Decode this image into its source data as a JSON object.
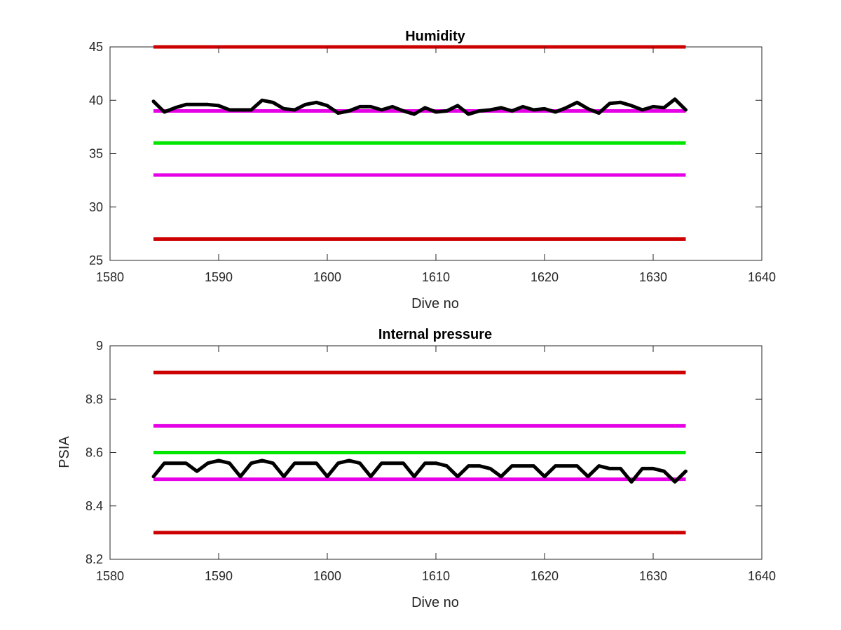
{
  "chart_data": [
    {
      "type": "line",
      "title": "Humidity",
      "xlabel": "Dive no",
      "ylabel": "",
      "xlim": [
        1580,
        1640
      ],
      "ylim": [
        25,
        45
      ],
      "xticks": [
        1580,
        1590,
        1600,
        1610,
        1620,
        1630,
        1640
      ],
      "yticks": [
        25,
        30,
        35,
        40,
        45
      ],
      "grid": false,
      "reference_lines": [
        {
          "value": 45,
          "color": "#cc0000",
          "x_range": [
            1584,
            1633
          ]
        },
        {
          "value": 39,
          "color": "#e600e6",
          "x_range": [
            1584,
            1633
          ]
        },
        {
          "value": 36,
          "color": "#00e600",
          "x_range": [
            1584,
            1633
          ]
        },
        {
          "value": 33,
          "color": "#e600e6",
          "x_range": [
            1584,
            1633
          ]
        },
        {
          "value": 27,
          "color": "#cc0000",
          "x_range": [
            1584,
            1633
          ]
        }
      ],
      "series": [
        {
          "color": "#000000",
          "x": [
            1584,
            1585,
            1586,
            1587,
            1588,
            1589,
            1590,
            1591,
            1592,
            1593,
            1594,
            1595,
            1596,
            1597,
            1598,
            1599,
            1600,
            1601,
            1602,
            1603,
            1604,
            1605,
            1606,
            1607,
            1608,
            1609,
            1610,
            1611,
            1612,
            1613,
            1614,
            1615,
            1616,
            1617,
            1618,
            1619,
            1620,
            1621,
            1622,
            1623,
            1624,
            1625,
            1626,
            1627,
            1628,
            1629,
            1630,
            1631,
            1632,
            1633
          ],
          "y": [
            39.9,
            38.9,
            39.3,
            39.6,
            39.6,
            39.6,
            39.5,
            39.1,
            39.1,
            39.1,
            40.0,
            39.8,
            39.2,
            39.1,
            39.6,
            39.8,
            39.5,
            38.8,
            39.0,
            39.4,
            39.4,
            39.1,
            39.4,
            39.0,
            38.7,
            39.3,
            38.9,
            39.0,
            39.5,
            38.7,
            39.0,
            39.1,
            39.3,
            39.0,
            39.4,
            39.1,
            39.2,
            38.9,
            39.3,
            39.8,
            39.2,
            38.8,
            39.7,
            39.8,
            39.5,
            39.1,
            39.4,
            39.3,
            40.1,
            39.1
          ]
        }
      ]
    },
    {
      "type": "line",
      "title": "Internal pressure",
      "xlabel": "Dive no",
      "ylabel": "PSIA",
      "xlim": [
        1580,
        1640
      ],
      "ylim": [
        8.2,
        9.0
      ],
      "xticks": [
        1580,
        1590,
        1600,
        1610,
        1620,
        1630,
        1640
      ],
      "yticks": [
        8.2,
        8.4,
        8.6,
        8.8,
        9.0
      ],
      "ytick_labels": [
        "8.2",
        "8.4",
        "8.6",
        "8.8",
        "9"
      ],
      "grid": false,
      "reference_lines": [
        {
          "value": 8.9,
          "color": "#cc0000",
          "x_range": [
            1584,
            1633
          ]
        },
        {
          "value": 8.7,
          "color": "#e600e6",
          "x_range": [
            1584,
            1633
          ]
        },
        {
          "value": 8.6,
          "color": "#00e600",
          "x_range": [
            1584,
            1633
          ]
        },
        {
          "value": 8.5,
          "color": "#e600e6",
          "x_range": [
            1584,
            1633
          ]
        },
        {
          "value": 8.3,
          "color": "#cc0000",
          "x_range": [
            1584,
            1633
          ]
        }
      ],
      "series": [
        {
          "color": "#000000",
          "x": [
            1584,
            1585,
            1586,
            1587,
            1588,
            1589,
            1590,
            1591,
            1592,
            1593,
            1594,
            1595,
            1596,
            1597,
            1598,
            1599,
            1600,
            1601,
            1602,
            1603,
            1604,
            1605,
            1606,
            1607,
            1608,
            1609,
            1610,
            1611,
            1612,
            1613,
            1614,
            1615,
            1616,
            1617,
            1618,
            1619,
            1620,
            1621,
            1622,
            1623,
            1624,
            1625,
            1626,
            1627,
            1628,
            1629,
            1630,
            1631,
            1632,
            1633
          ],
          "y": [
            8.51,
            8.56,
            8.56,
            8.56,
            8.53,
            8.56,
            8.57,
            8.56,
            8.51,
            8.56,
            8.57,
            8.56,
            8.51,
            8.56,
            8.56,
            8.56,
            8.51,
            8.56,
            8.57,
            8.56,
            8.51,
            8.56,
            8.56,
            8.56,
            8.51,
            8.56,
            8.56,
            8.55,
            8.51,
            8.55,
            8.55,
            8.54,
            8.51,
            8.55,
            8.55,
            8.55,
            8.51,
            8.55,
            8.55,
            8.55,
            8.51,
            8.55,
            8.54,
            8.54,
            8.49,
            8.54,
            8.54,
            8.53,
            8.49,
            8.53
          ]
        }
      ]
    }
  ]
}
